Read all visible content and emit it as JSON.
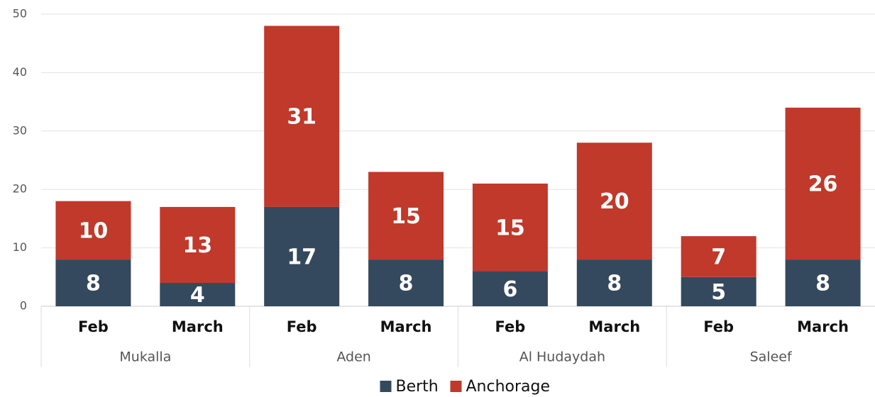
{
  "chart_data": {
    "type": "stacked_bar",
    "categories": [
      "Feb",
      "March",
      "Feb",
      "March",
      "Feb",
      "March",
      "Feb",
      "March"
    ],
    "groups": [
      "Mukalla",
      "Aden",
      "Al Hudaydah",
      "Saleef"
    ],
    "series": [
      {
        "name": "Berth",
        "color": "#34495e",
        "values": [
          8,
          4,
          17,
          8,
          6,
          8,
          5,
          8
        ]
      },
      {
        "name": "Anchorage",
        "color": "#c0392b",
        "values": [
          10,
          13,
          31,
          15,
          15,
          20,
          7,
          26
        ]
      }
    ],
    "ylim": [
      0,
      50
    ],
    "yticks": [
      0,
      10,
      20,
      30,
      40,
      50
    ],
    "grid": true,
    "legend": "bottom"
  }
}
